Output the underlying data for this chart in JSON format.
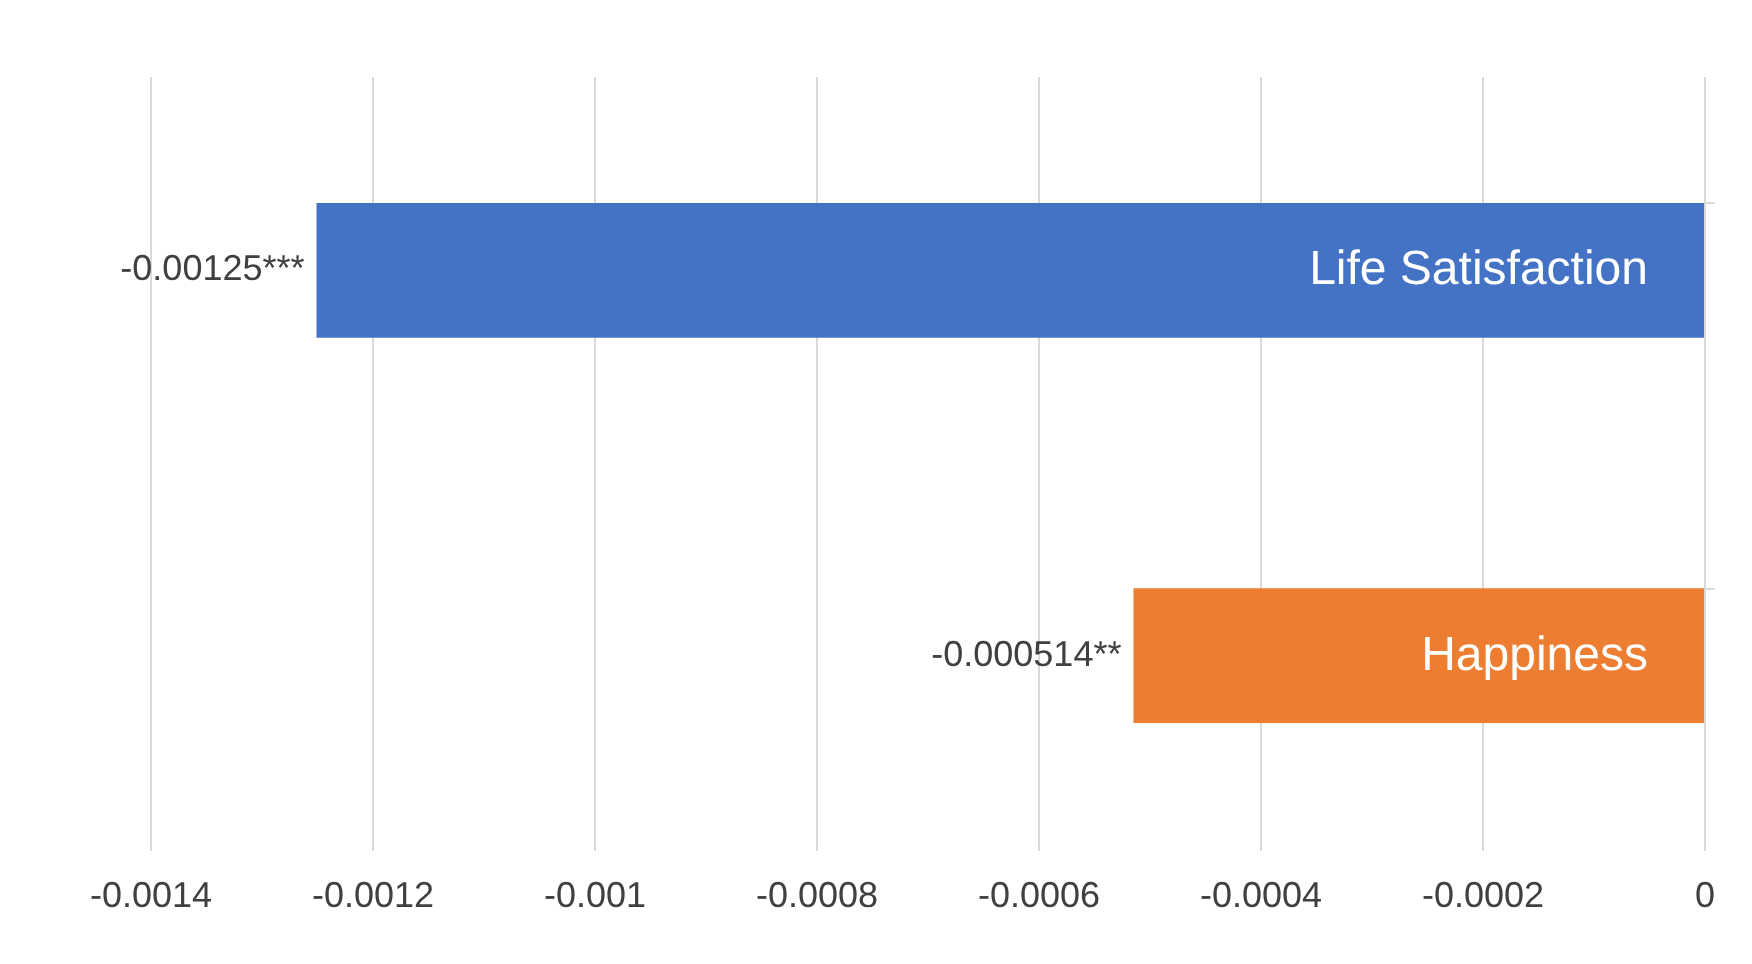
{
  "chart_data": {
    "type": "bar",
    "orientation": "horizontal",
    "categories": [
      "Life Satisfaction",
      "Happiness"
    ],
    "values": [
      -0.00125,
      -0.000514
    ],
    "colors": [
      "#4472c4",
      "#ed7d31"
    ],
    "value_labels": [
      "-0.00125***",
      "-0.000514**"
    ],
    "xlim": [
      -0.0014,
      0
    ],
    "xticks": [
      -0.0014,
      -0.0012,
      -0.001,
      -0.0008,
      -0.0006,
      -0.0004,
      -0.0002,
      0
    ],
    "grid": "x"
  }
}
